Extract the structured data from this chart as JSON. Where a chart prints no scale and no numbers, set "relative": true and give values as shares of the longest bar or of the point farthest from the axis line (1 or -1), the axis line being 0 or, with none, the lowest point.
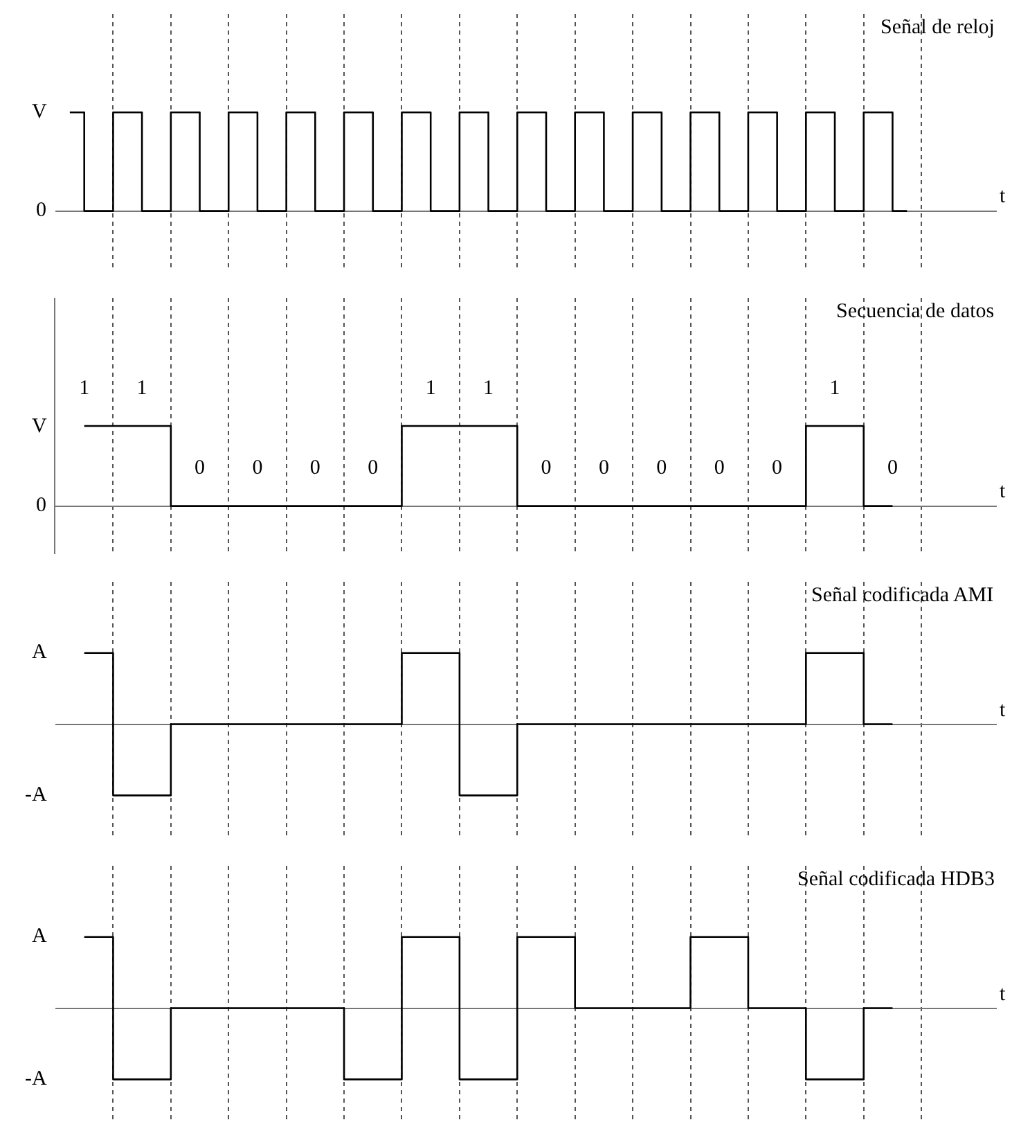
{
  "chart_data": [
    {
      "type": "step",
      "title": "Señal de reloj",
      "xlabel": "t",
      "categories": [
        null,
        null,
        null,
        null,
        null,
        null,
        null,
        null,
        null,
        null,
        null,
        null,
        null,
        null,
        null,
        null,
        null,
        null,
        null,
        null,
        null,
        null,
        null,
        null,
        null,
        null,
        null,
        null,
        null,
        null
      ],
      "series": [
        {
          "color": "#000000",
          "values": [
            1,
            0,
            1,
            0,
            1,
            0,
            1,
            0,
            1,
            0,
            1,
            0,
            1,
            0,
            1,
            0,
            1,
            0,
            1,
            0,
            1,
            0,
            1,
            0,
            1,
            0,
            1,
            0,
            1,
            0
          ]
        }
      ],
      "relative": true,
      "annotations": [
        "V",
        "0"
      ],
      "grid": "x",
      "line_style": "solid"
    },
    {
      "type": "step",
      "title": "Secuencia de datos",
      "xlabel": "t",
      "categories": [
        null,
        null,
        null,
        null,
        null,
        null,
        null,
        null,
        null,
        null,
        null,
        null,
        null,
        null,
        null
      ],
      "series": [
        {
          "color": "#000000",
          "values": [
            1,
            1,
            0,
            0,
            0,
            0,
            1,
            1,
            0,
            0,
            0,
            0,
            0,
            1,
            0
          ],
          "value_labels": [
            "1",
            "1",
            "0",
            "0",
            "0",
            "0",
            "1",
            "1",
            "0",
            "0",
            "0",
            "0",
            "0",
            "1",
            "0"
          ]
        }
      ],
      "annotations": [
        "V",
        "0"
      ],
      "grid": "x",
      "line_style": "solid"
    },
    {
      "type": "step",
      "title": "Señal codificada AMI",
      "xlabel": "t",
      "categories": [
        null,
        null,
        null,
        null,
        null,
        null,
        null,
        null,
        null,
        null,
        null,
        null,
        null,
        null,
        null
      ],
      "series": [
        {
          "color": "#000000",
          "values": [
            1,
            -1,
            0,
            0,
            0,
            0,
            1,
            -1,
            0,
            0,
            0,
            0,
            0,
            1,
            0
          ]
        }
      ],
      "relative": true,
      "annotations": [
        "A",
        "-A"
      ],
      "grid": "x",
      "line_style": "solid"
    },
    {
      "type": "step",
      "title": "Señal codificada HDB3",
      "xlabel": "t",
      "categories": [
        null,
        null,
        null,
        null,
        null,
        null,
        null,
        null,
        null,
        null,
        null,
        null,
        null,
        null,
        null
      ],
      "series": [
        {
          "color": "#000000",
          "values": [
            1,
            -1,
            0,
            0,
            0,
            -1,
            1,
            -1,
            1,
            0,
            0,
            1,
            0,
            -1,
            0
          ]
        }
      ],
      "relative": true,
      "annotations": [
        "A",
        "-A"
      ],
      "grid": "x",
      "line_style": "solid"
    }
  ]
}
